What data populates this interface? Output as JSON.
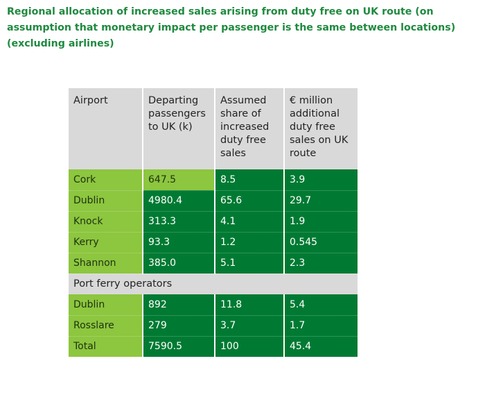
{
  "title": "Regional allocation of increased sales arising from duty free on UK route (on assumption that monetary impact per passenger is the same between locations) (excluding airlines)",
  "headers": [
    "Airport",
    "Departing passengers to UK (k)",
    "Assumed share of increased duty free sales",
    "€ million additional duty free sales on UK route"
  ],
  "header_lines": [
    "Airport",
    "Departing\npassengers\nto UK (k)",
    "Assumed\nshare of\nincreased\nduty free\nsales",
    "€ million\nadditional\nduty free\nsales on UK\nroute"
  ],
  "airport_rows": [
    {
      "name": "Cork",
      "passengers": "647.5",
      "share": "8.5",
      "sales": "3.9"
    },
    {
      "name": "Dublin",
      "passengers": "4980.4",
      "share": "65.6",
      "sales": "29.7"
    },
    {
      "name": "Knock",
      "passengers": "313.3",
      "share": "4.1",
      "sales": "1.9"
    },
    {
      "name": "Kerry",
      "passengers": "93.3",
      "share": "1.2",
      "sales": "0.545"
    },
    {
      "name": "Shannon",
      "passengers": "385.0",
      "share": "5.1",
      "sales": "2.3"
    }
  ],
  "section_label": "Port ferry operators",
  "port_rows": [
    {
      "name": "Dublin",
      "passengers": "892",
      "share": "11.8",
      "sales": "5.4"
    },
    {
      "name": "Rosslare",
      "passengers": "279",
      "share": "3.7",
      "sales": "1.7"
    }
  ],
  "total_row": {
    "name": "Total",
    "passengers": "7590.5",
    "share": "100",
    "sales": "45.4"
  },
  "colors": {
    "title": "#1f8a3f",
    "light_green": "#8dc63f",
    "dark_green": "#007a33",
    "header_grey": "#d9d9d9"
  }
}
